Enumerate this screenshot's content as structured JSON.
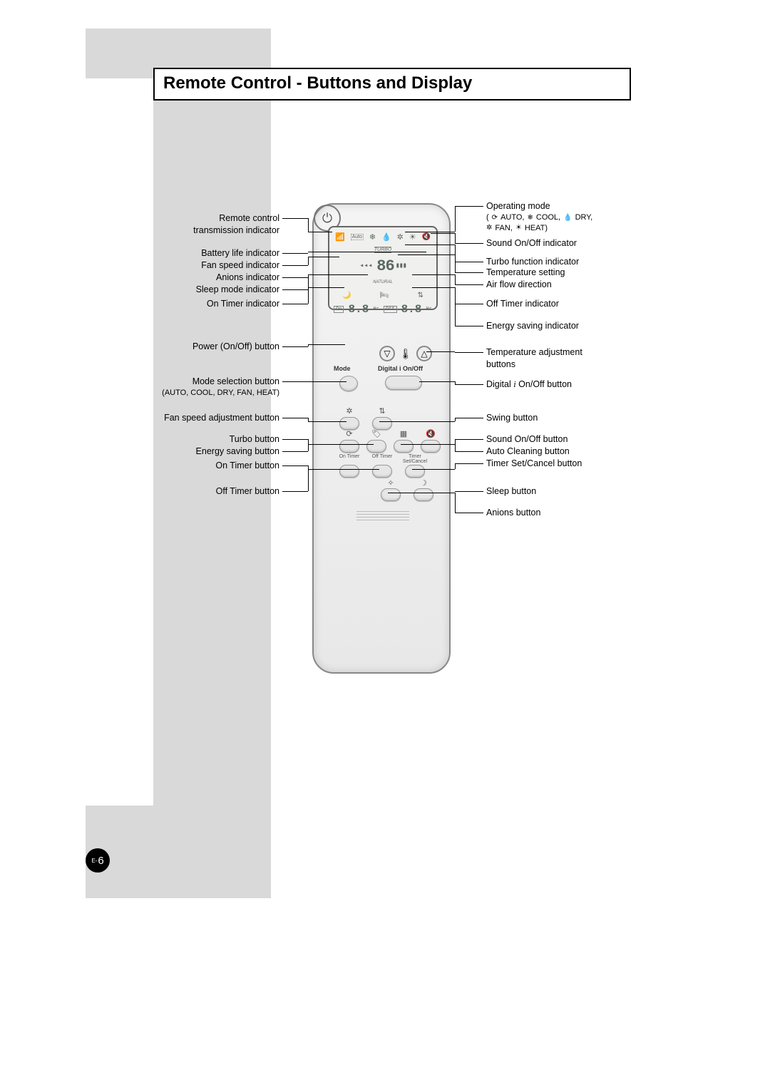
{
  "page": {
    "title": "Remote Control - Buttons and Display",
    "number_prefix": "E-",
    "number": "6"
  },
  "colors": {
    "gray_block": "#d9d9d9",
    "lcd_bg": "#f0f0ee",
    "remote_body": "#ececec"
  },
  "remote": {
    "type": "infographic",
    "lcd": {
      "mode_icons": [
        "📶",
        "Auto",
        "❄",
        "💧",
        "✲",
        "☀"
      ],
      "temp_display": "86",
      "turbo_label": "TURBO",
      "natural_label": "NATURAL",
      "mid_icons": [
        "🌙",
        "🛏",
        "⇅"
      ],
      "timers": {
        "on_label": "On",
        "on_value": "8.8",
        "on_unit": "Hr",
        "off_label": "Off",
        "off_value": "8.8",
        "off_unit": "Hr"
      },
      "energy_icon": "✦"
    },
    "labels": {
      "mode": "Mode",
      "digital": "Digital i  On/Off",
      "on_timer": "On Timer",
      "off_timer": "Off Timer",
      "set_cancel": "Timer Set/Cancel"
    },
    "icons": {
      "power": "⏻",
      "temp_down": "▽",
      "temp_up": "△",
      "thermo": "🌡",
      "fan": "✲",
      "swing": "⇅",
      "turbo": "⟳",
      "saving": "🏷",
      "cleaning": "▦",
      "sound": "🔇",
      "anion": "✧",
      "sleep": "☽"
    }
  },
  "callouts": {
    "left": [
      {
        "key": "tx",
        "text": "Remote control\ntransmission indicator"
      },
      {
        "key": "batt",
        "text": "Battery life indicator"
      },
      {
        "key": "fanI",
        "text": "Fan speed indicator"
      },
      {
        "key": "anI",
        "text": "Anions indicator"
      },
      {
        "key": "slpI",
        "text": "Sleep mode indicator"
      },
      {
        "key": "onTI",
        "text": "On Timer indicator"
      },
      {
        "key": "pwr",
        "text": "Power (On/Off) button"
      },
      {
        "key": "modeB",
        "text": "Mode selection button",
        "sub": "(AUTO, COOL, DRY, FAN, HEAT)"
      },
      {
        "key": "fanB",
        "text": "Fan speed adjustment button"
      },
      {
        "key": "turB",
        "text": "Turbo button"
      },
      {
        "key": "savB",
        "text": "Energy saving button"
      },
      {
        "key": "onTB",
        "text": "On Timer button"
      },
      {
        "key": "offTB",
        "text": "Off Timer button"
      }
    ],
    "right": [
      {
        "key": "opm",
        "text": "Operating mode",
        "modes": [
          {
            "icon": "⟳",
            "label": "AUTO,"
          },
          {
            "icon": "❄",
            "label": "COOL,"
          },
          {
            "icon": "💧",
            "label": "DRY,"
          },
          {
            "icon": "✲",
            "label": "FAN,"
          },
          {
            "icon": "☀",
            "label": "HEAT)"
          }
        ],
        "modes_prefix": "("
      },
      {
        "key": "sndI",
        "text": "Sound On/Off indicator"
      },
      {
        "key": "turI",
        "text": "Turbo function indicator"
      },
      {
        "key": "tmpS",
        "text": "Temperature setting"
      },
      {
        "key": "afd",
        "text": "Air flow direction"
      },
      {
        "key": "offTI",
        "text": "Off Timer indicator"
      },
      {
        "key": "esI",
        "text": "Energy saving indicator"
      },
      {
        "key": "tadj",
        "text": "Temperature adjustment\nbuttons"
      },
      {
        "key": "digB",
        "text": "Digital i On/Off button",
        "ital_idx": 8
      },
      {
        "key": "swgB",
        "text": "Swing button"
      },
      {
        "key": "sndB",
        "text": "Sound On/Off button"
      },
      {
        "key": "clnB",
        "text": "Auto Cleaning button"
      },
      {
        "key": "tscB",
        "text": "Timer Set/Cancel button"
      },
      {
        "key": "slpB",
        "text": "Sleep button"
      },
      {
        "key": "anB",
        "text": "Anions button"
      }
    ]
  }
}
